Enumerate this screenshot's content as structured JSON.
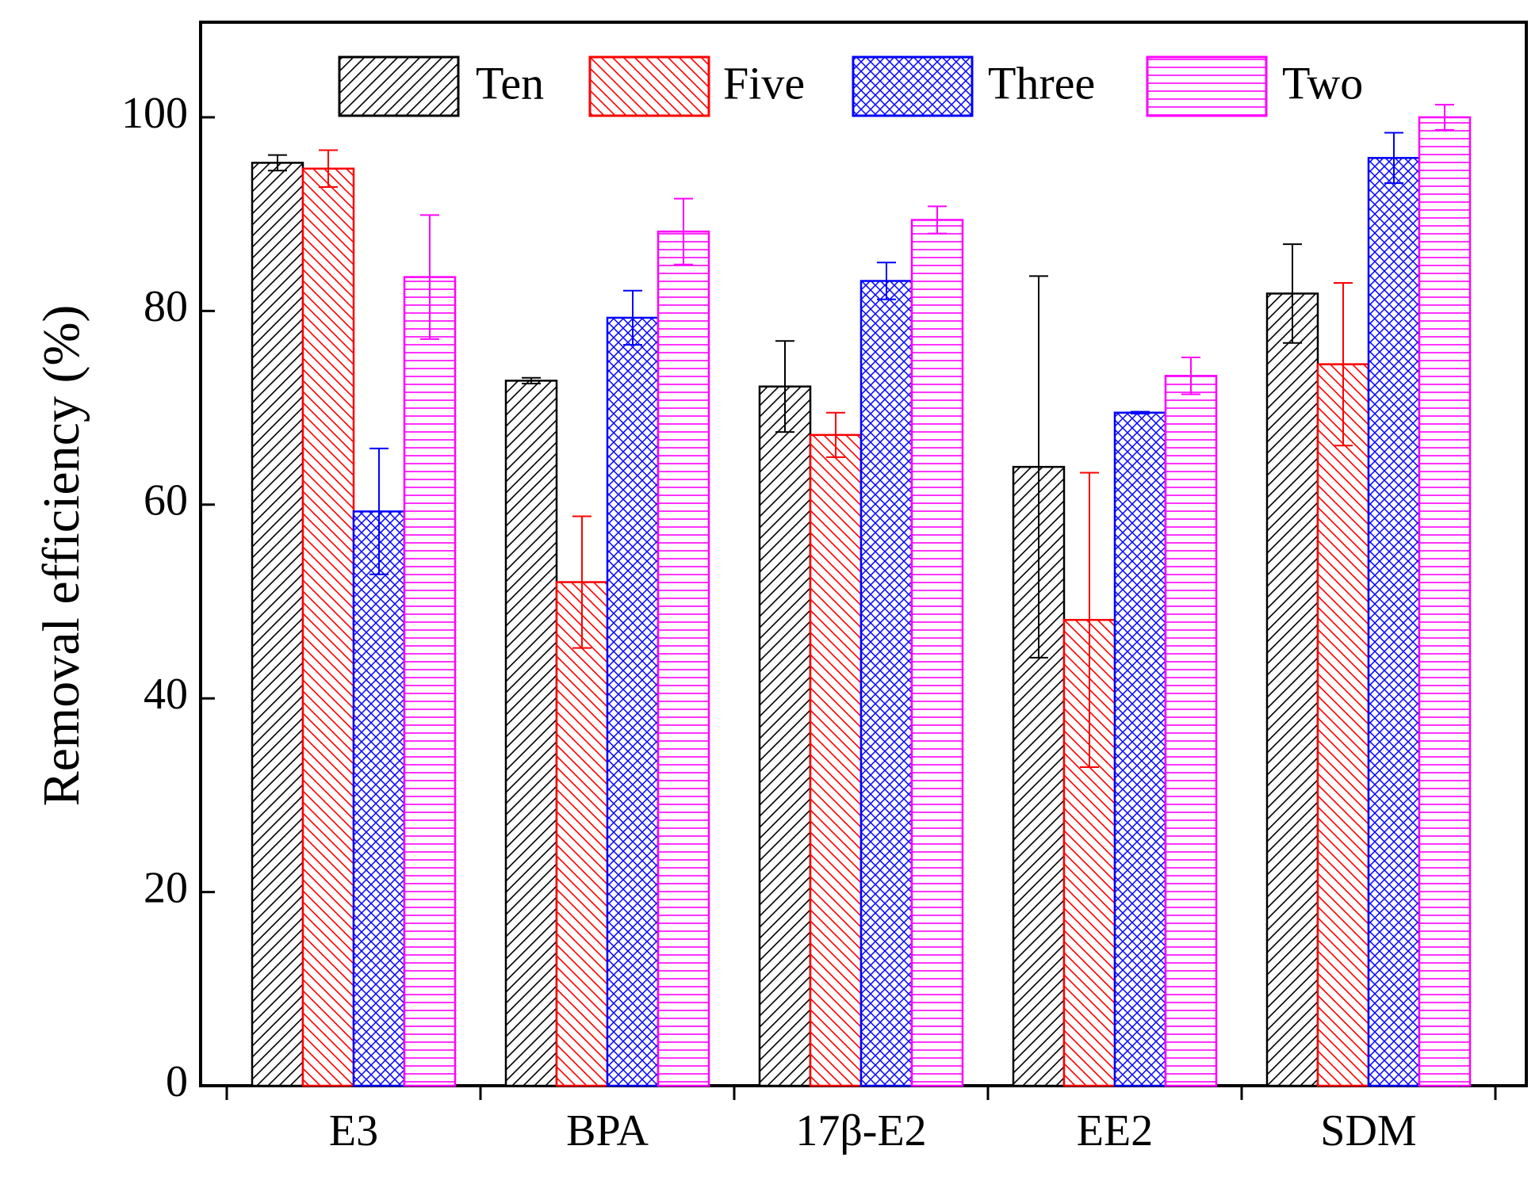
{
  "chart_data": {
    "type": "bar",
    "title": "",
    "xlabel": "",
    "ylabel": "Removal efficiency (%)",
    "ylim": [
      0,
      110
    ],
    "yticks": [
      0,
      20,
      40,
      60,
      80,
      100
    ],
    "ytick_labels": [
      "0",
      "20",
      "40",
      "60",
      "80",
      "100"
    ],
    "categories": [
      "E3",
      "BPA",
      "17β-E2",
      "EE2",
      "SDM"
    ],
    "legend_position": "top",
    "series": [
      {
        "name": "Ten",
        "color": "#000000",
        "pattern": "diagonal-up",
        "values": [
          95.3,
          72.8,
          72.2,
          63.9,
          81.8
        ],
        "errors": [
          0.8,
          0.3,
          4.7,
          19.7,
          5.1
        ]
      },
      {
        "name": "Five",
        "color": "#ff0000",
        "pattern": "diagonal-down",
        "values": [
          94.7,
          52.0,
          67.2,
          48.1,
          74.5
        ],
        "errors": [
          1.9,
          6.8,
          2.3,
          15.2,
          8.4
        ]
      },
      {
        "name": "Three",
        "color": "#0000ff",
        "pattern": "crosshatch",
        "values": [
          59.3,
          79.3,
          83.1,
          69.5,
          95.8
        ],
        "errors": [
          6.5,
          2.8,
          1.9,
          0.1,
          2.6
        ]
      },
      {
        "name": "Two",
        "color": "#ff00ff",
        "pattern": "horizontal",
        "values": [
          83.5,
          88.2,
          89.4,
          73.3,
          100.0
        ],
        "errors": [
          6.4,
          3.4,
          1.4,
          1.9,
          1.3
        ]
      }
    ]
  }
}
